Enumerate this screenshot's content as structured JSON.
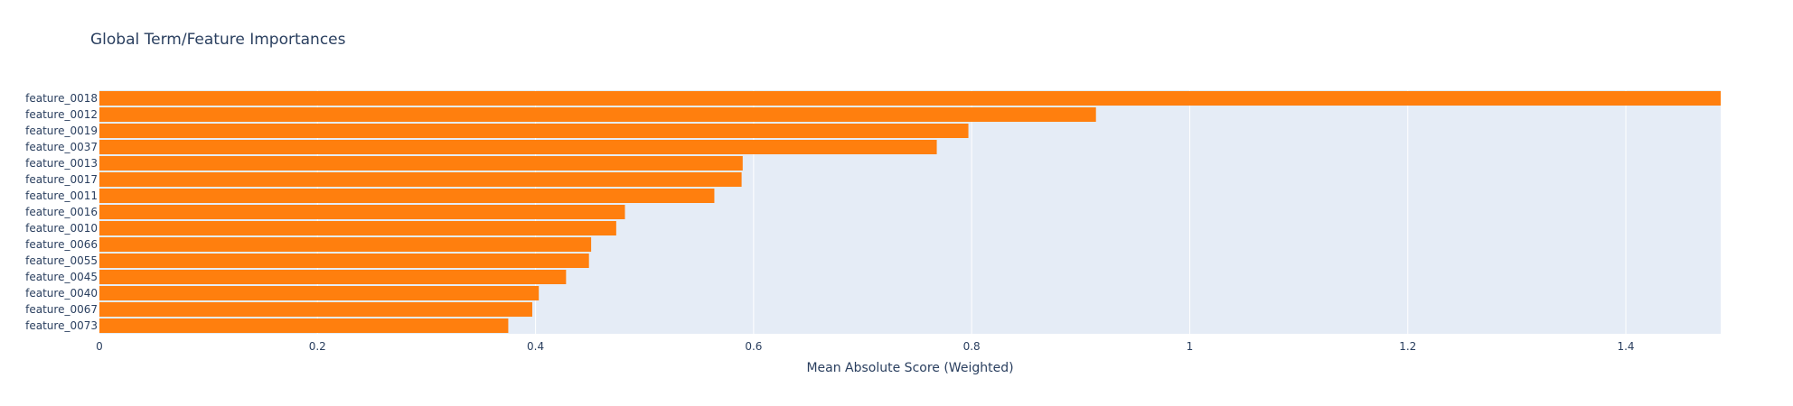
{
  "chart_data": {
    "type": "bar",
    "orientation": "horizontal",
    "title": "Global Term/Feature Importances",
    "xlabel": "Mean Absolute Score (Weighted)",
    "ylabel": "",
    "xlim": [
      0,
      1.487
    ],
    "xticks": [
      0,
      0.2,
      0.4,
      0.6,
      0.8,
      1,
      1.2,
      1.4
    ],
    "xtick_labels": [
      "0",
      "0.2",
      "0.4",
      "0.6",
      "0.8",
      "1",
      "1.2",
      "1.4"
    ],
    "categories": [
      "feature_0018",
      "feature_0012",
      "feature_0019",
      "feature_0037",
      "feature_0013",
      "feature_0017",
      "feature_0011",
      "feature_0016",
      "feature_0010",
      "feature_0066",
      "feature_0055",
      "feature_0045",
      "feature_0040",
      "feature_0067",
      "feature_0073"
    ],
    "values": [
      1.487,
      0.914,
      0.797,
      0.768,
      0.59,
      0.589,
      0.564,
      0.482,
      0.474,
      0.451,
      0.449,
      0.428,
      0.403,
      0.397,
      0.375
    ],
    "bar_color": "#ff7f0e",
    "plot_background": "#e5ecf6",
    "grid": true,
    "legend": false
  }
}
